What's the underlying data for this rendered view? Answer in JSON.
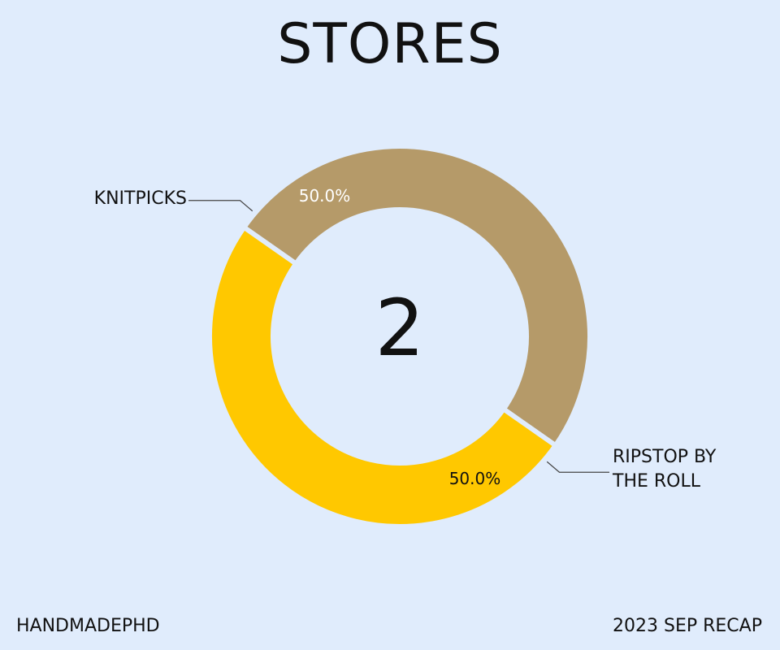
{
  "chart_data": {
    "type": "pie",
    "title": "STORES",
    "center_label": "2",
    "slices": [
      {
        "label": "KNITPICKS",
        "value": 50.0,
        "display": "50.0%",
        "color": "#b59a69",
        "pct_text_color": "#ffffff"
      },
      {
        "label": "RIPSTOP BY THE ROLL",
        "value": 50.0,
        "display": "50.0%",
        "color": "#ffc800",
        "pct_text_color": "#111111"
      }
    ]
  },
  "footer": {
    "left": "HANDMADEPHD",
    "right": "2023 SEP RECAP"
  }
}
